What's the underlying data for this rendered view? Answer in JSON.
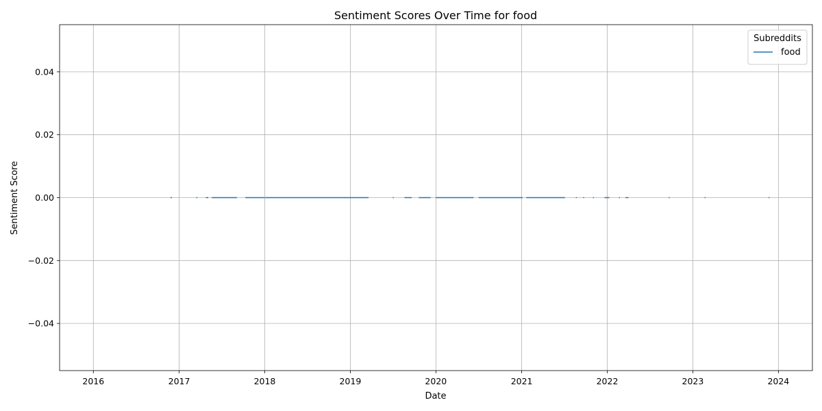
{
  "chart_data": {
    "type": "line",
    "title": "Sentiment Scores Over Time for food",
    "xlabel": "Date",
    "ylabel": "Sentiment Score",
    "x_ticks": [
      "2016",
      "2017",
      "2018",
      "2019",
      "2020",
      "2021",
      "2022",
      "2023",
      "2024"
    ],
    "y_ticks": [
      "0.04",
      "0.02",
      "0.00",
      "−0.02",
      "−0.04"
    ],
    "x_tick_values": [
      "2016-01-01",
      "2017-01-01",
      "2018-01-01",
      "2019-01-01",
      "2020-01-01",
      "2021-01-01",
      "2022-01-01",
      "2023-01-01",
      "2024-01-01"
    ],
    "y_tick_values": [
      0.04,
      0.02,
      0.0,
      -0.02,
      -0.04
    ],
    "xlim": [
      "2015-08-10",
      "2024-05-25"
    ],
    "ylim": [
      -0.055,
      0.055
    ],
    "grid": true,
    "legend": {
      "title": "Subreddits",
      "placement": "top-right"
    },
    "colors": {
      "series": "#1f77b4",
      "grid": "#b0b0b0"
    },
    "series": [
      {
        "name": "food",
        "color": "#1f77b4",
        "segments": [
          [
            "2016-11-25",
            "2016-12-01"
          ],
          [
            "2017-03-15",
            "2017-03-17"
          ],
          [
            "2017-04-25",
            "2017-05-05"
          ],
          [
            "2017-05-20",
            "2017-09-05"
          ],
          [
            "2017-10-10",
            "2017-12-31"
          ],
          [
            "2018-01-02",
            "2019-03-20"
          ],
          [
            "2019-07-01",
            "2019-07-03"
          ],
          [
            "2019-08-20",
            "2019-09-20"
          ],
          [
            "2019-10-20",
            "2019-12-10"
          ],
          [
            "2020-01-01",
            "2020-06-10"
          ],
          [
            "2020-07-01",
            "2021-01-05"
          ],
          [
            "2021-01-20",
            "2021-07-05"
          ],
          [
            "2021-08-20",
            "2021-08-22"
          ],
          [
            "2021-09-20",
            "2021-09-22"
          ],
          [
            "2021-11-01",
            "2021-11-03"
          ],
          [
            "2021-12-20",
            "2022-01-10"
          ],
          [
            "2022-02-20",
            "2022-02-22"
          ],
          [
            "2022-03-20",
            "2022-04-01"
          ],
          [
            "2022-09-20",
            "2022-09-22"
          ],
          [
            "2023-02-20",
            "2023-02-22"
          ],
          [
            "2023-11-20",
            "2023-11-22"
          ]
        ],
        "value": 0.0
      }
    ]
  }
}
